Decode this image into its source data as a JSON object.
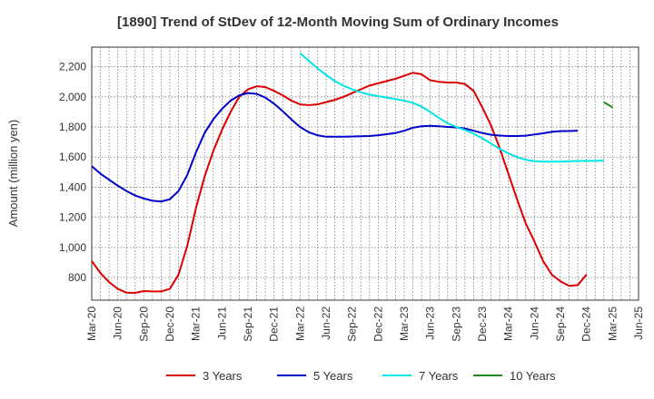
{
  "chart_data": {
    "type": "line",
    "title": "[1890]  Trend of StDev of 12-Month Moving Sum of Ordinary Incomes",
    "xlabel": "",
    "ylabel": "Amount (million yen)",
    "ylim": [
      650,
      2330
    ],
    "yticks": [
      800,
      1000,
      1200,
      1400,
      1600,
      1800,
      2000,
      2200
    ],
    "ytick_labels": [
      "800",
      "1,000",
      "1,200",
      "1,400",
      "1,600",
      "1,800",
      "2,000",
      "2,200"
    ],
    "x_start": "Mar-20",
    "x_end": "Jun-25",
    "xtick_labels": [
      "Mar-20",
      "Jun-20",
      "Sep-20",
      "Dec-20",
      "Mar-21",
      "Jun-21",
      "Sep-21",
      "Dec-21",
      "Mar-22",
      "Jun-22",
      "Sep-22",
      "Dec-22",
      "Mar-23",
      "Jun-23",
      "Sep-23",
      "Dec-23",
      "Mar-24",
      "Jun-24",
      "Sep-24",
      "Dec-24",
      "Mar-25",
      "Jun-25"
    ],
    "grid": true,
    "legend_position": "bottom",
    "series": [
      {
        "name": "3 Years",
        "color": "#dd0000",
        "start": "Mar-20",
        "values": [
          910,
          830,
          770,
          725,
          700,
          698,
          710,
          708,
          708,
          725,
          820,
          1010,
          1260,
          1470,
          1640,
          1780,
          1900,
          2000,
          2050,
          2070,
          2065,
          2040,
          2010,
          1975,
          1950,
          1945,
          1950,
          1965,
          1980,
          2000,
          2025,
          2050,
          2075,
          2090,
          2105,
          2120,
          2140,
          2160,
          2150,
          2110,
          2100,
          2095,
          2095,
          2085,
          2040,
          1930,
          1810,
          1660,
          1490,
          1320,
          1160,
          1040,
          910,
          820,
          775,
          745,
          750,
          820
        ]
      },
      {
        "name": "5 Years",
        "color": "#0000cc",
        "start": "Mar-20",
        "values": [
          1540,
          1490,
          1450,
          1410,
          1375,
          1345,
          1325,
          1310,
          1305,
          1320,
          1375,
          1480,
          1630,
          1760,
          1850,
          1920,
          1975,
          2010,
          2025,
          2020,
          1995,
          1955,
          1905,
          1850,
          1800,
          1765,
          1745,
          1735,
          1735,
          1735,
          1737,
          1738,
          1740,
          1745,
          1752,
          1760,
          1775,
          1795,
          1805,
          1808,
          1805,
          1800,
          1797,
          1790,
          1775,
          1760,
          1748,
          1743,
          1740,
          1740,
          1742,
          1750,
          1758,
          1768,
          1772,
          1773,
          1775
        ]
      },
      {
        "name": "7 Years",
        "color": "#00e5e5",
        "start": "Mar-22",
        "values": [
          2290,
          2240,
          2190,
          2145,
          2105,
          2075,
          2050,
          2030,
          2015,
          2005,
          1995,
          1985,
          1975,
          1960,
          1935,
          1900,
          1860,
          1825,
          1800,
          1780,
          1755,
          1725,
          1690,
          1655,
          1625,
          1600,
          1582,
          1573,
          1570,
          1570,
          1570,
          1572,
          1574,
          1574,
          1575,
          1577
        ]
      },
      {
        "name": "10 Years",
        "color": "#228b22",
        "start": "Feb-25",
        "values": [
          1965,
          1930
        ]
      }
    ]
  }
}
